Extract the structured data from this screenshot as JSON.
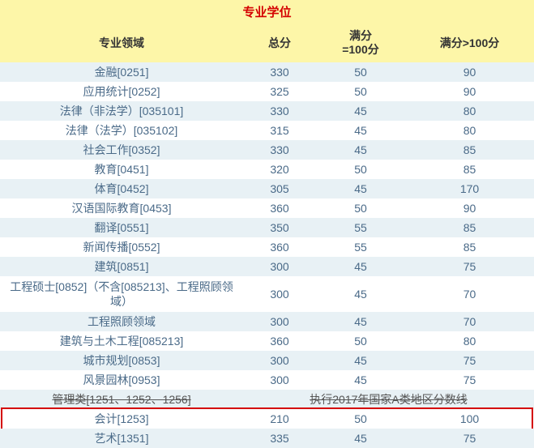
{
  "title": {
    "text": "专业学位",
    "color": "#d40000",
    "background": "#fdf6a8"
  },
  "header": {
    "background": "#fdf6a8",
    "col1": "专业领域",
    "col2": "总分",
    "col3": "满分\n=100分",
    "col4": "满分>100分"
  },
  "colors": {
    "rowAlt": "#e8f1f5",
    "rowPlain": "#ffffff",
    "text": "#4a6a88",
    "strike": "#555555",
    "highlightBorder": "#d40000"
  },
  "rows": [
    {
      "name": "金融[0251]",
      "total": "330",
      "s100": "50",
      "g100": "90",
      "alt": true
    },
    {
      "name": "应用统计[0252]",
      "total": "325",
      "s100": "50",
      "g100": "90",
      "alt": false
    },
    {
      "name": "法律（非法学）[035101]",
      "total": "330",
      "s100": "45",
      "g100": "80",
      "alt": true
    },
    {
      "name": "法律（法学）[035102]",
      "total": "315",
      "s100": "45",
      "g100": "80",
      "alt": false
    },
    {
      "name": "社会工作[0352]",
      "total": "330",
      "s100": "45",
      "g100": "85",
      "alt": true
    },
    {
      "name": "教育[0451]",
      "total": "320",
      "s100": "50",
      "g100": "85",
      "alt": false
    },
    {
      "name": "体育[0452]",
      "total": "305",
      "s100": "45",
      "g100": "170",
      "alt": true
    },
    {
      "name": "汉语国际教育[0453]",
      "total": "360",
      "s100": "50",
      "g100": "90",
      "alt": false
    },
    {
      "name": "翻译[0551]",
      "total": "350",
      "s100": "55",
      "g100": "85",
      "alt": true
    },
    {
      "name": "新闻传播[0552]",
      "total": "360",
      "s100": "55",
      "g100": "85",
      "alt": false
    },
    {
      "name": "建筑[0851]",
      "total": "300",
      "s100": "45",
      "g100": "75",
      "alt": true
    },
    {
      "name": "工程硕士[0852]（不含[085213]、工程照顾领域）",
      "total": "300",
      "s100": "45",
      "g100": "70",
      "alt": false,
      "tall": true
    },
    {
      "name": "工程照顾领域",
      "total": "300",
      "s100": "45",
      "g100": "70",
      "alt": true
    },
    {
      "name": "建筑与土木工程[085213]",
      "total": "360",
      "s100": "50",
      "g100": "80",
      "alt": false
    },
    {
      "name": "城市规划[0853]",
      "total": "300",
      "s100": "45",
      "g100": "75",
      "alt": true
    },
    {
      "name": "风景园林[0953]",
      "total": "300",
      "s100": "45",
      "g100": "75",
      "alt": false
    },
    {
      "name": "管理类[1251、1252、1256]",
      "merged": "执行2017年国家A类地区分数线",
      "alt": true,
      "strike": true
    },
    {
      "name": "会计[1253]",
      "total": "210",
      "s100": "50",
      "g100": "100",
      "alt": false,
      "highlight": true
    },
    {
      "name": "艺术[1351]",
      "total": "335",
      "s100": "45",
      "g100": "75",
      "alt": true
    }
  ]
}
